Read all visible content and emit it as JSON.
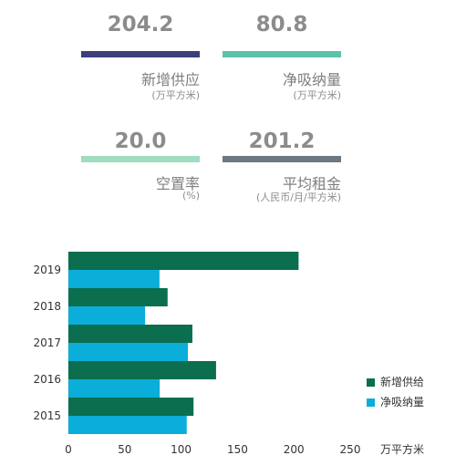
{
  "kpis": [
    {
      "value": "204.2",
      "label": "新增供应",
      "unit": "(万平方米)",
      "color": "#3b3f7a"
    },
    {
      "value": "80.8",
      "label": "净吸纳量",
      "unit": "(万平方米)",
      "color": "#5bc2aa"
    },
    {
      "value": "20.0",
      "label": "空置率",
      "unit": "(%)",
      "color": "#9fdcc0"
    },
    {
      "value": "201.2",
      "label": "平均租金",
      "unit": "(人民币/月/平方米)",
      "color": "#6d7880"
    }
  ],
  "chart_data": {
    "type": "bar",
    "orientation": "horizontal",
    "categories": [
      "2019",
      "2018",
      "2017",
      "2016",
      "2015"
    ],
    "series": [
      {
        "name": "新增供给",
        "color": "#0a6e4f",
        "values": [
          204.2,
          88,
          110,
          131,
          111
        ]
      },
      {
        "name": "净吸纳量",
        "color": "#0aaed9",
        "values": [
          80.8,
          68,
          106,
          81,
          105
        ]
      }
    ],
    "xticks": [
      "0",
      "50",
      "100",
      "150",
      "200",
      "250"
    ],
    "xlim": [
      0,
      250
    ],
    "xlabel": "万平方米",
    "legend_position": "right",
    "grid": false
  }
}
